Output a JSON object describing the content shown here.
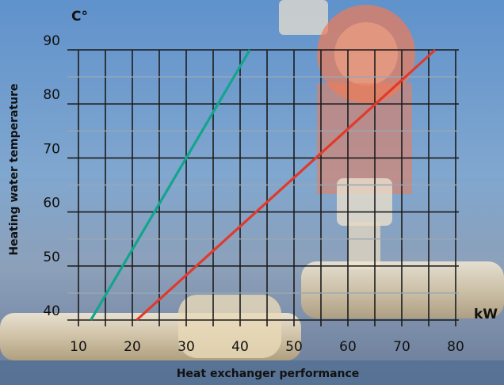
{
  "chart_data": {
    "type": "line",
    "xlabel": "Heat exchanger performance",
    "ylabel": "Heating water temperature",
    "x_unit": "kW",
    "y_unit": "C°",
    "xlim": [
      10,
      80
    ],
    "ylim": [
      40,
      90
    ],
    "x_ticks": [
      10,
      20,
      30,
      40,
      50,
      60,
      70,
      80
    ],
    "y_ticks": [
      40,
      50,
      60,
      70,
      80,
      90
    ],
    "grid": true,
    "series": [
      {
        "color": "#13a48c",
        "points": [
          [
            12.3,
            40
          ],
          [
            41.8,
            90
          ]
        ]
      },
      {
        "color": "#e03a2c",
        "points": [
          [
            20.8,
            40
          ],
          [
            76.2,
            90
          ]
        ]
      }
    ]
  },
  "colors": {
    "background_top": "#4b84c6",
    "background_bottom": "#5a6f8a",
    "grid": "#1b1b1b",
    "grid_light": "#9aa6b4"
  }
}
